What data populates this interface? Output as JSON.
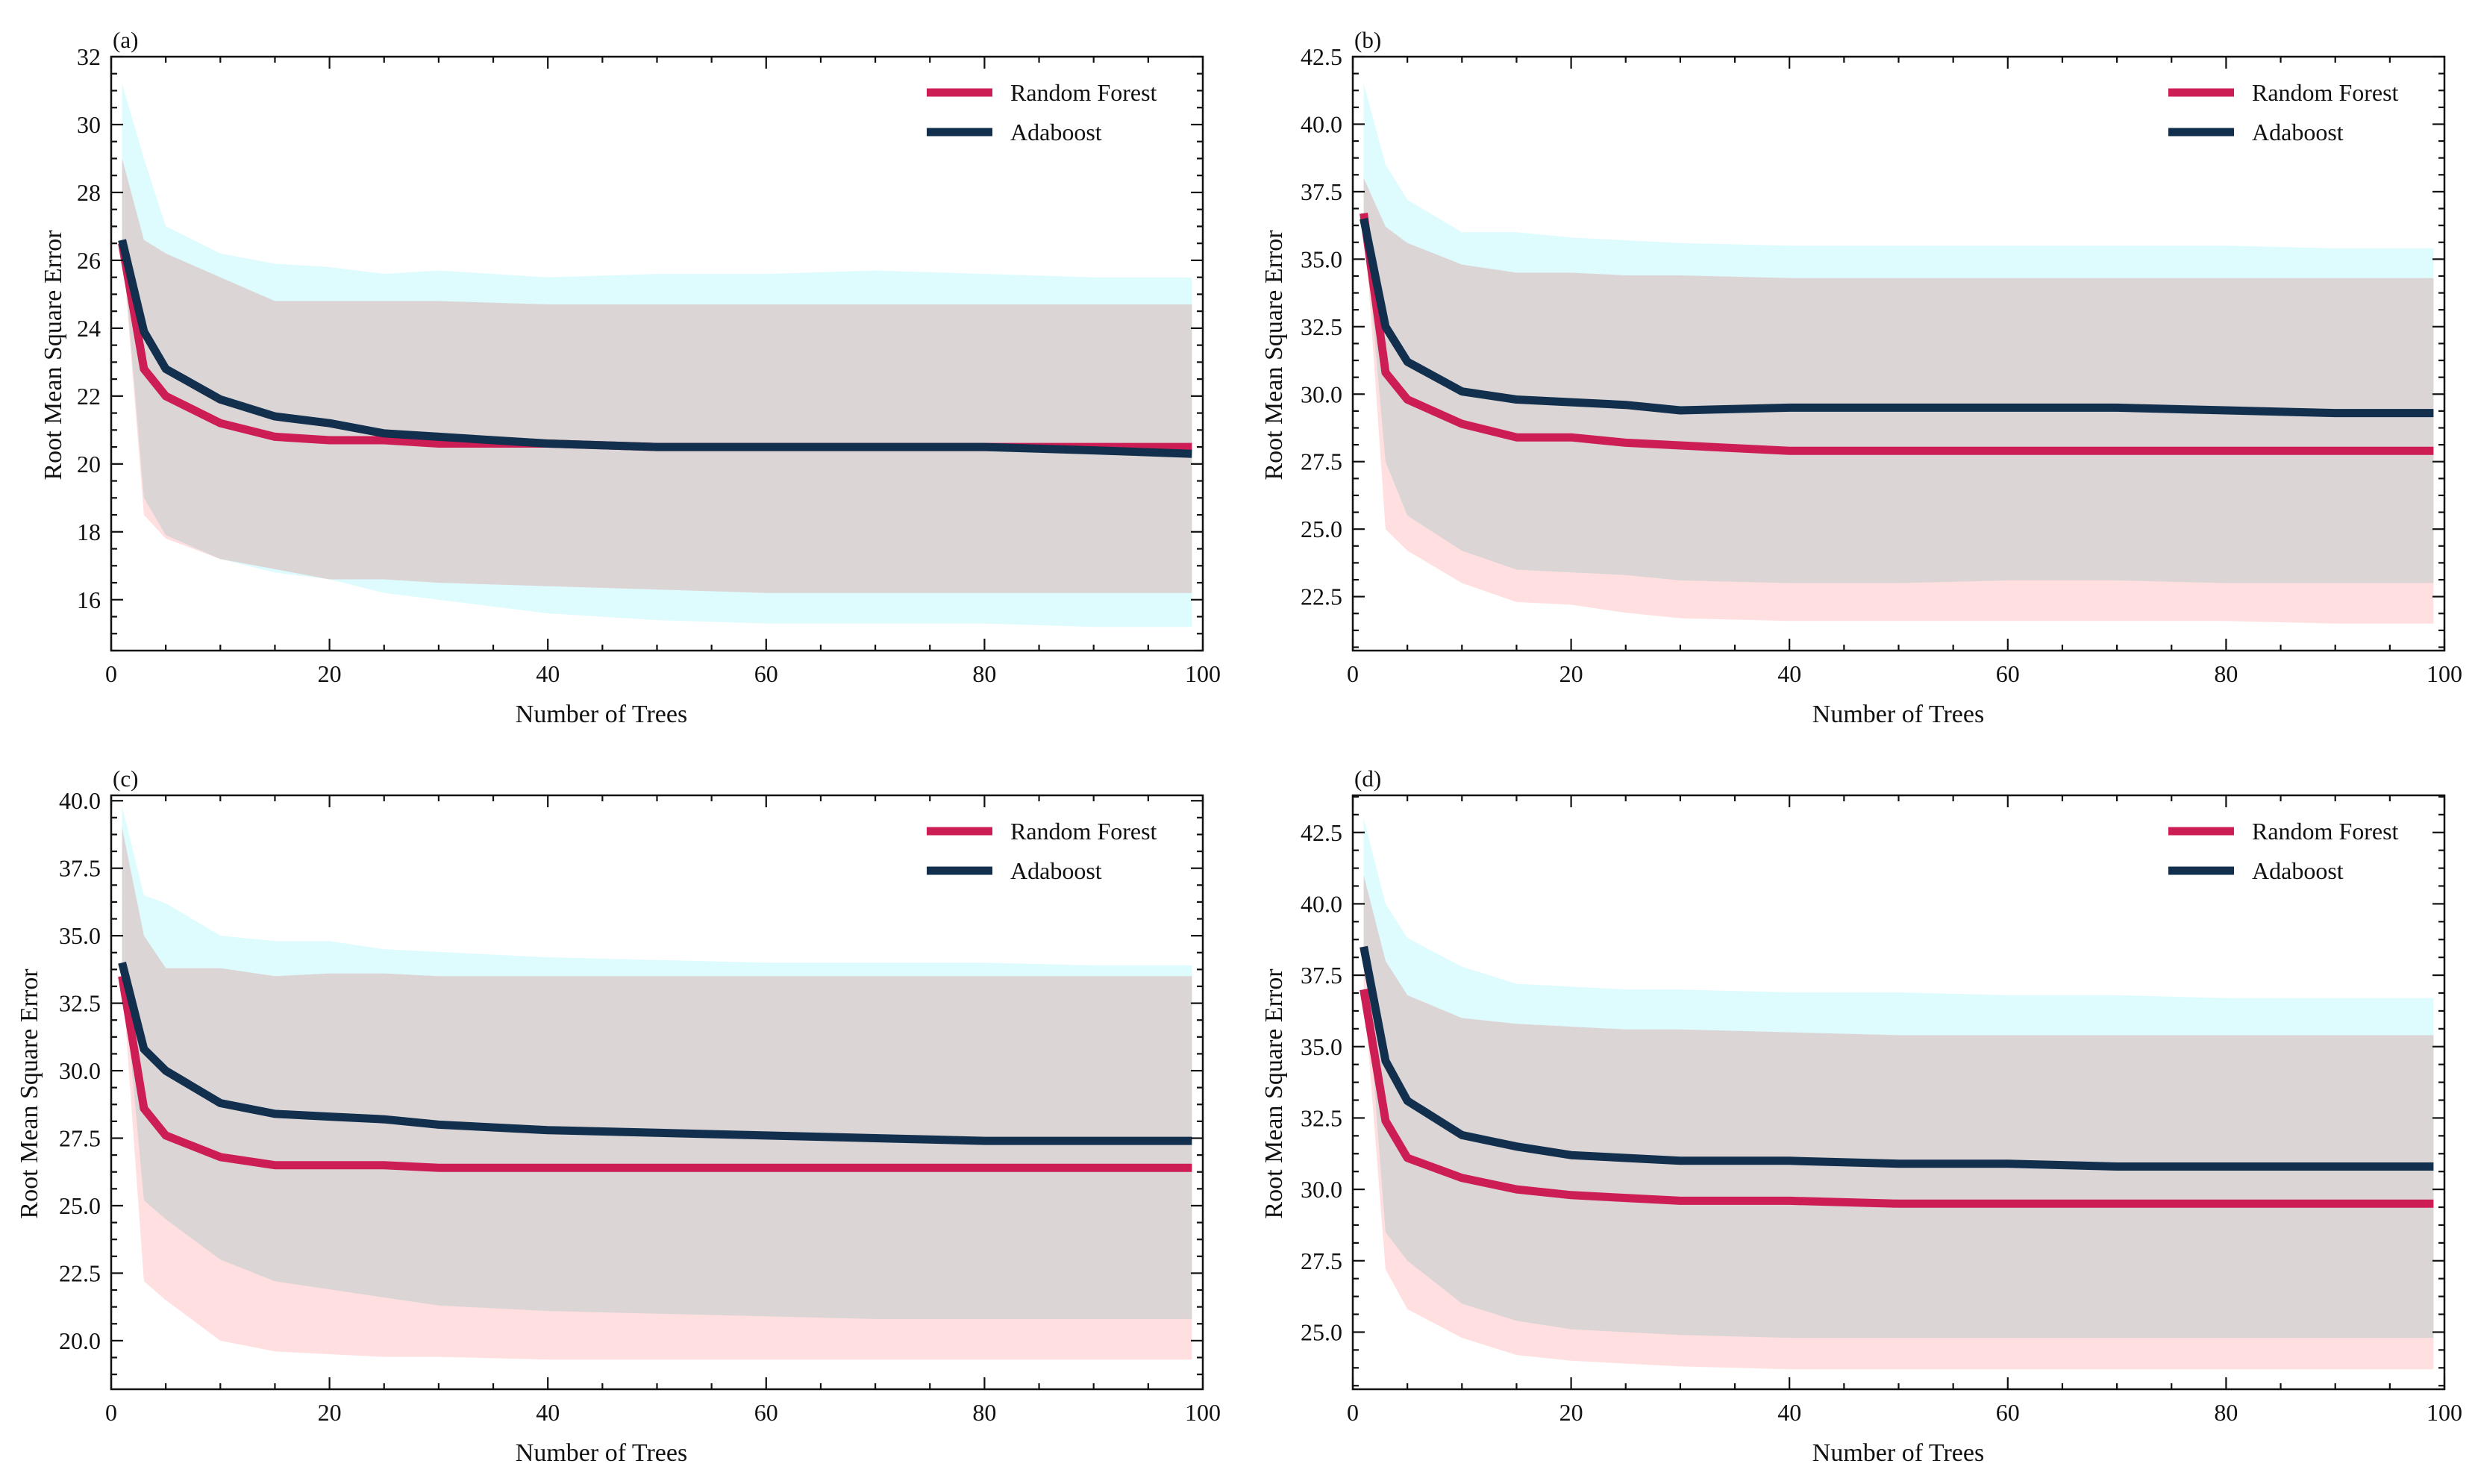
{
  "colors": {
    "random_forest": "#cc1e55",
    "adaboost": "#12304d",
    "rf_band": "#ffb3b3",
    "ada_band": "#b0f5fb"
  },
  "chart_data": [
    {
      "panel": "(a)",
      "type": "line",
      "xlabel": "Number of Trees",
      "ylabel": "Root Mean Square Error",
      "xlim": [
        0,
        100
      ],
      "ylim": [
        14.5,
        32.0
      ],
      "xticks": [
        "0",
        "20",
        "40",
        "60",
        "80",
        "100"
      ],
      "yticks": [
        "16",
        "18",
        "20",
        "22",
        "24",
        "26",
        "28",
        "30",
        "32"
      ],
      "grid": false,
      "legend": "top-right",
      "x": [
        1,
        3,
        5,
        10,
        15,
        20,
        25,
        30,
        40,
        50,
        60,
        70,
        80,
        90,
        99
      ],
      "series": [
        {
          "name": "Random Forest",
          "values": [
            26.5,
            22.8,
            22.0,
            21.2,
            20.8,
            20.7,
            20.7,
            20.6,
            20.6,
            20.5,
            20.5,
            20.5,
            20.5,
            20.5,
            20.5
          ],
          "band_lower": [
            26.5,
            18.5,
            17.8,
            17.2,
            16.9,
            16.6,
            16.6,
            16.5,
            16.4,
            16.3,
            16.2,
            16.2,
            16.2,
            16.2,
            16.2
          ],
          "band_upper": [
            29.0,
            26.6,
            26.2,
            25.5,
            24.8,
            24.8,
            24.8,
            24.8,
            24.7,
            24.7,
            24.7,
            24.7,
            24.7,
            24.7,
            24.7
          ]
        },
        {
          "name": "Adaboost",
          "values": [
            26.6,
            23.9,
            22.8,
            21.9,
            21.4,
            21.2,
            20.9,
            20.8,
            20.6,
            20.5,
            20.5,
            20.5,
            20.5,
            20.4,
            20.3
          ],
          "band_lower": [
            26.6,
            19.0,
            17.9,
            17.2,
            16.8,
            16.6,
            16.2,
            16.0,
            15.6,
            15.4,
            15.3,
            15.3,
            15.3,
            15.2,
            15.2
          ],
          "band_upper": [
            31.2,
            29.0,
            27.0,
            26.2,
            25.9,
            25.8,
            25.6,
            25.7,
            25.5,
            25.6,
            25.6,
            25.7,
            25.6,
            25.5,
            25.5
          ]
        }
      ]
    },
    {
      "panel": "(b)",
      "type": "line",
      "xlabel": "Number of Trees",
      "ylabel": "Root Mean Square Error",
      "xlim": [
        0,
        100
      ],
      "ylim": [
        20.5,
        42.5
      ],
      "xticks": [
        "0",
        "20",
        "40",
        "60",
        "80",
        "100"
      ],
      "yticks": [
        "22.5",
        "25.0",
        "27.5",
        "30.0",
        "32.5",
        "35.0",
        "37.5",
        "40.0",
        "42.5"
      ],
      "grid": false,
      "legend": "top-right",
      "x": [
        1,
        3,
        5,
        10,
        15,
        20,
        25,
        30,
        40,
        50,
        60,
        70,
        80,
        90,
        99
      ],
      "series": [
        {
          "name": "Random Forest",
          "values": [
            36.7,
            30.8,
            29.8,
            28.9,
            28.4,
            28.4,
            28.2,
            28.1,
            27.9,
            27.9,
            27.9,
            27.9,
            27.9,
            27.9,
            27.9
          ],
          "band_lower": [
            36.7,
            25.0,
            24.2,
            23.0,
            22.3,
            22.2,
            21.9,
            21.7,
            21.6,
            21.6,
            21.6,
            21.6,
            21.6,
            21.5,
            21.5
          ],
          "band_upper": [
            38.0,
            36.2,
            35.6,
            34.8,
            34.5,
            34.5,
            34.4,
            34.4,
            34.3,
            34.3,
            34.3,
            34.3,
            34.3,
            34.3,
            34.3
          ]
        },
        {
          "name": "Adaboost",
          "values": [
            36.5,
            32.5,
            31.2,
            30.1,
            29.8,
            29.7,
            29.6,
            29.4,
            29.5,
            29.5,
            29.5,
            29.5,
            29.4,
            29.3,
            29.3
          ],
          "band_lower": [
            36.5,
            27.5,
            25.5,
            24.2,
            23.5,
            23.4,
            23.3,
            23.1,
            23.0,
            23.0,
            23.1,
            23.1,
            23.0,
            23.0,
            23.0
          ],
          "band_upper": [
            41.5,
            38.5,
            37.2,
            36.0,
            36.0,
            35.8,
            35.7,
            35.6,
            35.5,
            35.5,
            35.5,
            35.5,
            35.5,
            35.4,
            35.4
          ]
        }
      ]
    },
    {
      "panel": "(c)",
      "type": "line",
      "xlabel": "Number of Trees",
      "ylabel": "Root Mean Square Error",
      "xlim": [
        0,
        100
      ],
      "ylim": [
        18.2,
        40.2
      ],
      "xticks": [
        "0",
        "20",
        "40",
        "60",
        "80",
        "100"
      ],
      "yticks": [
        "20.0",
        "22.5",
        "25.0",
        "27.5",
        "30.0",
        "32.5",
        "35.0",
        "37.5",
        "40.0"
      ],
      "grid": false,
      "legend": "top-right",
      "x": [
        1,
        3,
        5,
        10,
        15,
        20,
        25,
        30,
        40,
        50,
        60,
        70,
        80,
        90,
        99
      ],
      "series": [
        {
          "name": "Random Forest",
          "values": [
            33.5,
            28.6,
            27.6,
            26.8,
            26.5,
            26.5,
            26.5,
            26.4,
            26.4,
            26.4,
            26.4,
            26.4,
            26.4,
            26.4,
            26.4
          ],
          "band_lower": [
            33.5,
            22.2,
            21.5,
            20.0,
            19.6,
            19.5,
            19.4,
            19.4,
            19.3,
            19.3,
            19.3,
            19.3,
            19.3,
            19.3,
            19.3
          ],
          "band_upper": [
            39.0,
            35.0,
            33.8,
            33.8,
            33.5,
            33.6,
            33.6,
            33.5,
            33.5,
            33.5,
            33.5,
            33.5,
            33.5,
            33.5,
            33.5
          ]
        },
        {
          "name": "Adaboost",
          "values": [
            34.0,
            30.8,
            30.0,
            28.8,
            28.4,
            28.3,
            28.2,
            28.0,
            27.8,
            27.7,
            27.6,
            27.5,
            27.4,
            27.4,
            27.4
          ],
          "band_lower": [
            34.0,
            25.2,
            24.5,
            23.0,
            22.2,
            21.9,
            21.6,
            21.3,
            21.1,
            21.0,
            20.9,
            20.8,
            20.8,
            20.8,
            20.8
          ],
          "band_upper": [
            39.8,
            36.5,
            36.2,
            35.0,
            34.8,
            34.8,
            34.5,
            34.4,
            34.2,
            34.1,
            34.0,
            34.0,
            34.0,
            33.9,
            33.9
          ]
        }
      ]
    },
    {
      "panel": "(d)",
      "type": "line",
      "xlabel": "Number of Trees",
      "ylabel": "Root Mean Square Error",
      "xlim": [
        0,
        100
      ],
      "ylim": [
        23.0,
        43.8
      ],
      "xticks": [
        "0",
        "20",
        "40",
        "60",
        "80",
        "100"
      ],
      "yticks": [
        "25.0",
        "27.5",
        "30.0",
        "32.5",
        "35.0",
        "37.5",
        "40.0",
        "42.5"
      ],
      "grid": false,
      "legend": "top-right",
      "x": [
        1,
        3,
        5,
        10,
        15,
        20,
        25,
        30,
        40,
        50,
        60,
        70,
        80,
        90,
        99
      ],
      "series": [
        {
          "name": "Random Forest",
          "values": [
            37.0,
            32.4,
            31.1,
            30.4,
            30.0,
            29.8,
            29.7,
            29.6,
            29.6,
            29.5,
            29.5,
            29.5,
            29.5,
            29.5,
            29.5
          ],
          "band_lower": [
            37.0,
            27.2,
            25.8,
            24.8,
            24.2,
            24.0,
            23.9,
            23.8,
            23.7,
            23.7,
            23.7,
            23.7,
            23.7,
            23.7,
            23.7
          ],
          "band_upper": [
            41.0,
            38.0,
            36.8,
            36.0,
            35.8,
            35.7,
            35.6,
            35.6,
            35.5,
            35.4,
            35.4,
            35.4,
            35.4,
            35.4,
            35.4
          ]
        },
        {
          "name": "Adaboost",
          "values": [
            38.5,
            34.5,
            33.1,
            31.9,
            31.5,
            31.2,
            31.1,
            31.0,
            31.0,
            30.9,
            30.9,
            30.8,
            30.8,
            30.8,
            30.8
          ],
          "band_lower": [
            38.5,
            28.5,
            27.5,
            26.0,
            25.4,
            25.1,
            25.0,
            24.9,
            24.8,
            24.8,
            24.8,
            24.8,
            24.8,
            24.8,
            24.8
          ],
          "band_upper": [
            43.0,
            40.0,
            38.8,
            37.8,
            37.2,
            37.1,
            37.0,
            37.0,
            36.9,
            36.9,
            36.8,
            36.8,
            36.7,
            36.7,
            36.7
          ]
        }
      ]
    }
  ]
}
